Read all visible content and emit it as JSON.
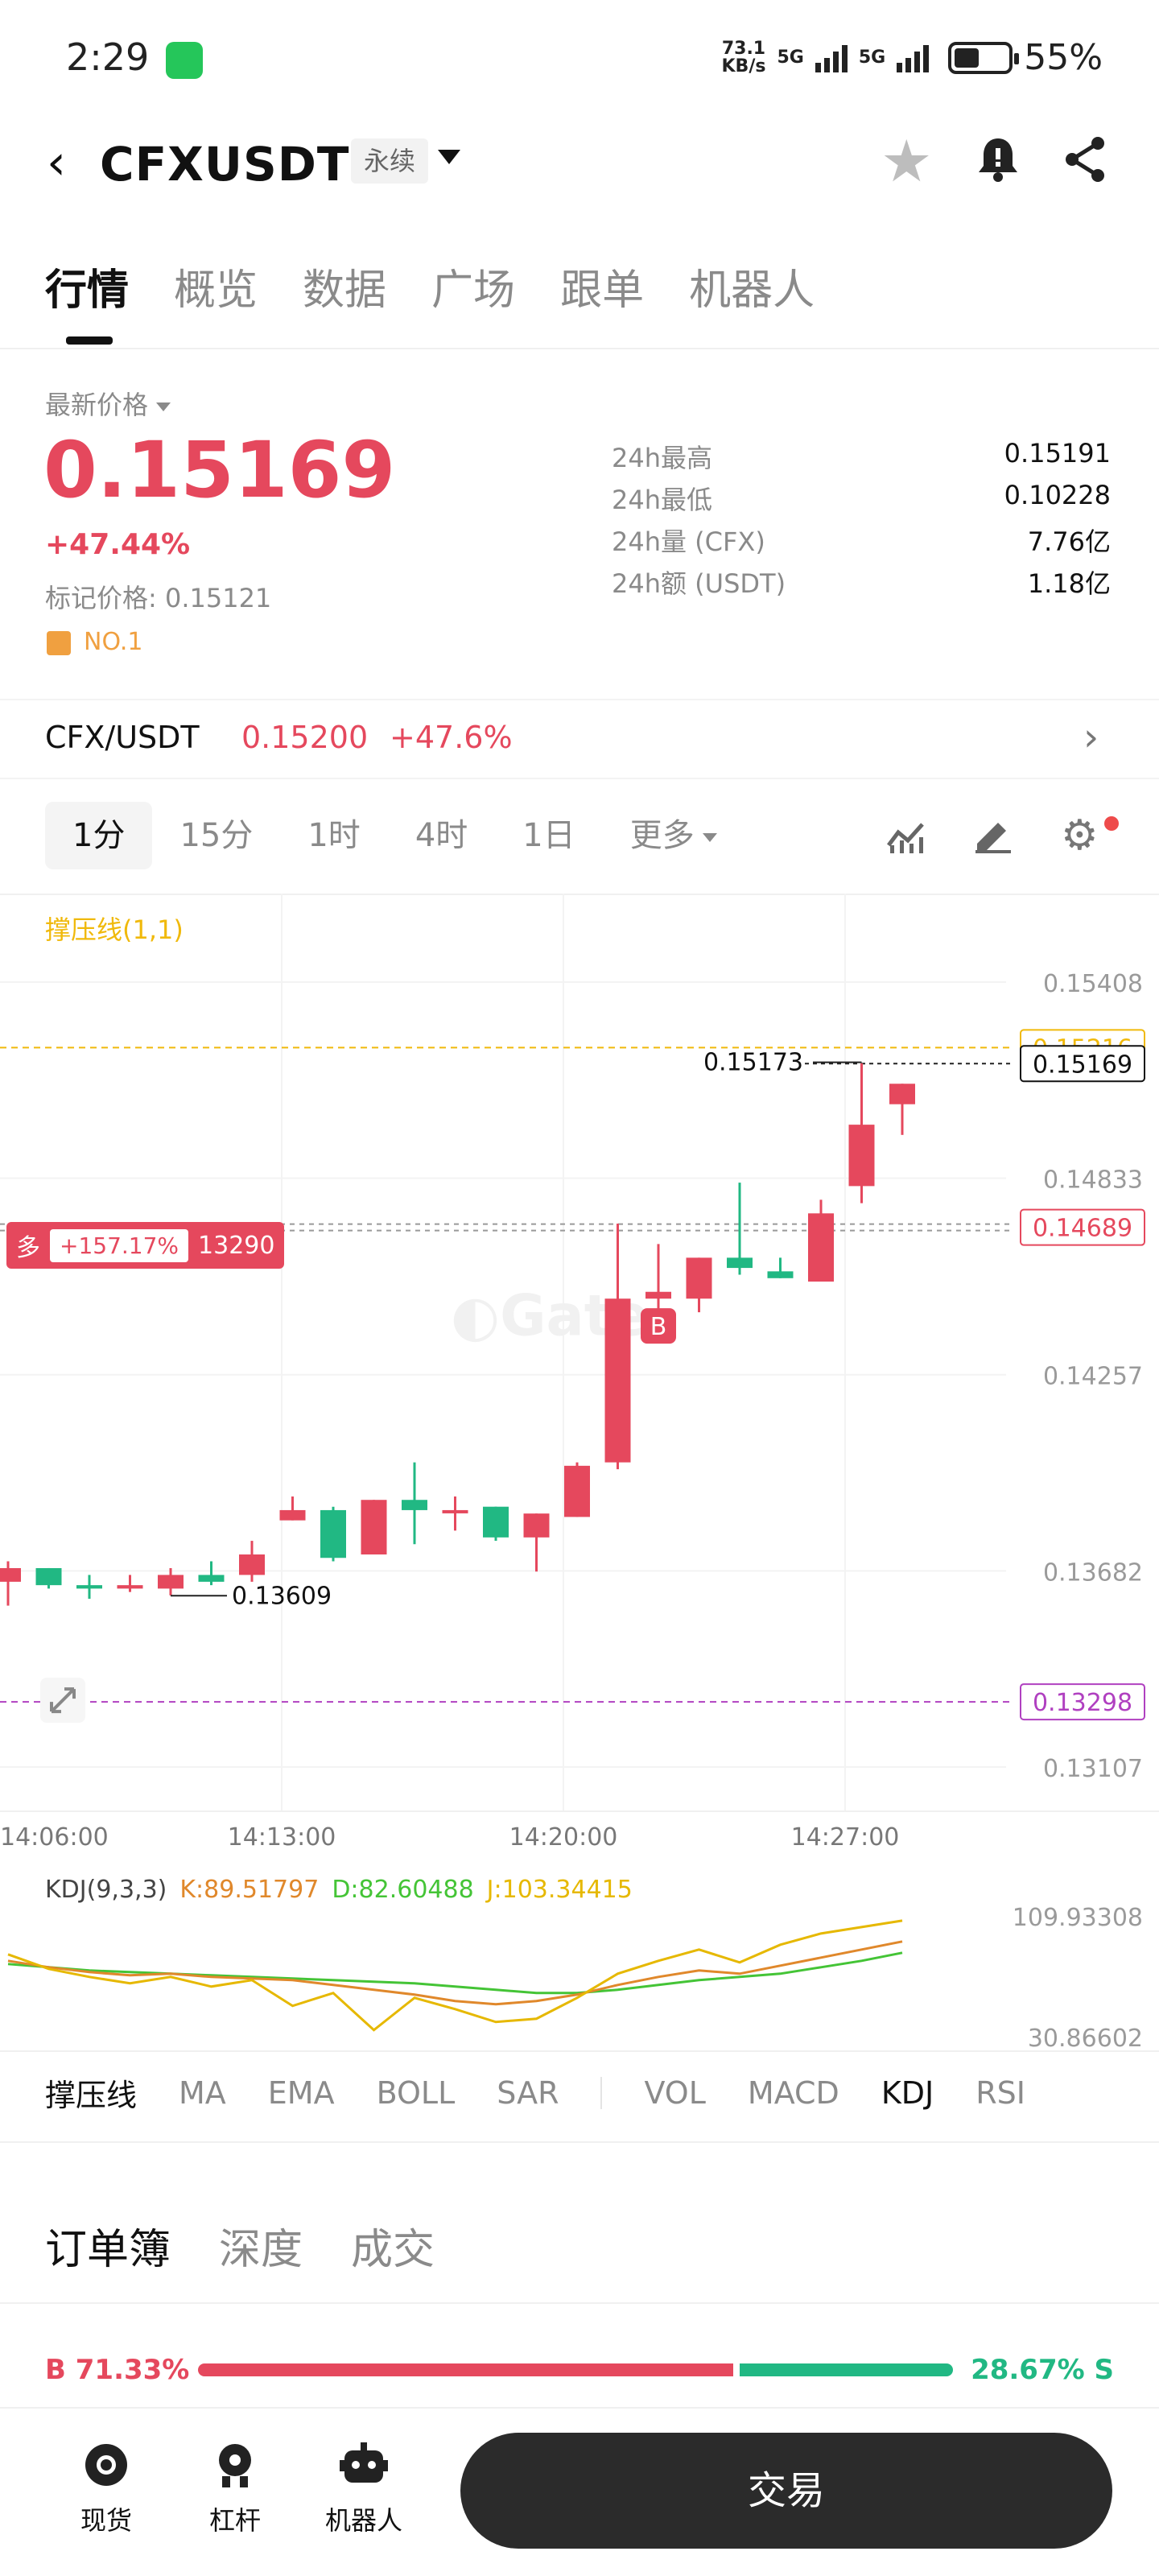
{
  "status_bar": {
    "time": "2:29",
    "net_speed_value": "73.1",
    "net_speed_unit": "KB/s",
    "signal_1": "5G",
    "signal_2": "5G",
    "battery": "55%"
  },
  "header": {
    "pair": "CFXUSDT",
    "contract_type": "永续"
  },
  "tabs": [
    "行情",
    "概览",
    "数据",
    "广场",
    "跟单",
    "机器人"
  ],
  "price_block": {
    "label": "最新价格",
    "last_price": "0.15169",
    "change": "+47.44%",
    "mark_price": "标记价格: 0.15121",
    "rank": "NO.1",
    "stats": [
      {
        "label": "24h最高",
        "value": "0.15191"
      },
      {
        "label": "24h最低",
        "value": "0.10228"
      },
      {
        "label": "24h量 (CFX)",
        "value": "7.76亿"
      },
      {
        "label": "24h额 (USDT)",
        "value": "1.18亿"
      }
    ]
  },
  "spot": {
    "pair": "CFX/USDT",
    "price": "0.15200",
    "change": "+47.6%"
  },
  "intervals": [
    "1分",
    "15分",
    "1时",
    "4时",
    "1日",
    "更多"
  ],
  "chart": {
    "indicator_name": "撑压线(1,1)",
    "watermark": "Gate",
    "position_tag": {
      "side": "多",
      "pnl": "+157.17%",
      "qty": "13290"
    },
    "labels": {
      "high": "0.15173",
      "low": "0.13609",
      "last": "0.15169",
      "resistance": "0.15216",
      "support": "0.13298",
      "entry": "0.14689",
      "buy_marker": "B"
    }
  },
  "chart_data": {
    "type": "candlestick",
    "y_ticks": [
      0.15408,
      0.14833,
      0.14257,
      0.13682,
      0.13107
    ],
    "ylim": [
      0.13107,
      0.15408
    ],
    "x_ticks": [
      "14:06:00",
      "14:13:00",
      "14:20:00",
      "14:27:00"
    ],
    "candles": [
      {
        "o": 0.1365,
        "h": 0.1371,
        "l": 0.1358,
        "c": 0.1369
      },
      {
        "o": 0.1369,
        "h": 0.1369,
        "l": 0.1363,
        "c": 0.1364
      },
      {
        "o": 0.1364,
        "h": 0.1367,
        "l": 0.136,
        "c": 0.1363
      },
      {
        "o": 0.1363,
        "h": 0.1367,
        "l": 0.1362,
        "c": 0.1364
      },
      {
        "o": 0.1363,
        "h": 0.1369,
        "l": 0.1361,
        "c": 0.1367
      },
      {
        "o": 0.1367,
        "h": 0.1371,
        "l": 0.1364,
        "c": 0.1365
      },
      {
        "o": 0.1367,
        "h": 0.1377,
        "l": 0.1365,
        "c": 0.1373
      },
      {
        "o": 0.1383,
        "h": 0.139,
        "l": 0.1383,
        "c": 0.1386
      },
      {
        "o": 0.1386,
        "h": 0.1387,
        "l": 0.1371,
        "c": 0.1372
      },
      {
        "o": 0.1373,
        "h": 0.1389,
        "l": 0.1373,
        "c": 0.1389
      },
      {
        "o": 0.1389,
        "h": 0.14,
        "l": 0.1376,
        "c": 0.1386
      },
      {
        "o": 0.1386,
        "h": 0.139,
        "l": 0.138,
        "c": 0.1386
      },
      {
        "o": 0.1387,
        "h": 0.1387,
        "l": 0.1377,
        "c": 0.1378
      },
      {
        "o": 0.1378,
        "h": 0.1385,
        "l": 0.1368,
        "c": 0.1385
      },
      {
        "o": 0.1384,
        "h": 0.14,
        "l": 0.1384,
        "c": 0.1399
      },
      {
        "o": 0.14,
        "h": 0.147,
        "l": 0.1398,
        "c": 0.1448
      },
      {
        "o": 0.1448,
        "h": 0.1464,
        "l": 0.144,
        "c": 0.145
      },
      {
        "o": 0.1448,
        "h": 0.146,
        "l": 0.1444,
        "c": 0.146
      },
      {
        "o": 0.146,
        "h": 0.1482,
        "l": 0.1455,
        "c": 0.1457
      },
      {
        "o": 0.1456,
        "h": 0.146,
        "l": 0.1454,
        "c": 0.1454
      },
      {
        "o": 0.1453,
        "h": 0.1477,
        "l": 0.1453,
        "c": 0.1473
      },
      {
        "o": 0.1481,
        "h": 0.1517,
        "l": 0.1476,
        "c": 0.1499
      },
      {
        "o": 0.1505,
        "h": 0.1511,
        "l": 0.1496,
        "c": 0.1511
      }
    ],
    "horizontal_lines": {
      "resistance": 0.15216,
      "support": 0.13298,
      "entry": 0.14689,
      "last": 0.15169
    }
  },
  "kdj": {
    "title": "KDJ(9,3,3)",
    "k": "K:89.51797",
    "d": "D:82.60488",
    "j": "J:103.34415",
    "y_max": "109.93308",
    "y_min": "30.86602",
    "k_values": [
      78,
      74,
      71,
      69,
      70,
      68,
      67,
      66,
      63,
      60,
      57,
      53,
      51,
      53,
      57,
      63,
      68,
      72,
      70,
      75,
      80,
      85,
      90
    ],
    "d_values": [
      76,
      74,
      72,
      71,
      70,
      69,
      68,
      67,
      66,
      65,
      64,
      62,
      60,
      58,
      58,
      60,
      63,
      66,
      68,
      70,
      74,
      78,
      83
    ],
    "j_values": [
      82,
      73,
      68,
      64,
      68,
      62,
      66,
      50,
      58,
      35,
      55,
      48,
      40,
      42,
      55,
      70,
      78,
      85,
      77,
      88,
      95,
      99,
      103
    ]
  },
  "indicator_tabs": [
    "撑压线",
    "MA",
    "EMA",
    "BOLL",
    "SAR",
    "VOL",
    "MACD",
    "KDJ",
    "RSI"
  ],
  "orderbook_tabs": [
    "订单簿",
    "深度",
    "成交"
  ],
  "ratio": {
    "buy": "B 71.33%",
    "sell": "28.67% S",
    "buy_fraction": 0.7133
  },
  "bottom_nav": {
    "items": [
      "现货",
      "杠杆",
      "机器人"
    ],
    "trade": "交易"
  },
  "colors": {
    "up": "#e5485d",
    "down": "#21b883",
    "accent": "#f0b90b"
  }
}
